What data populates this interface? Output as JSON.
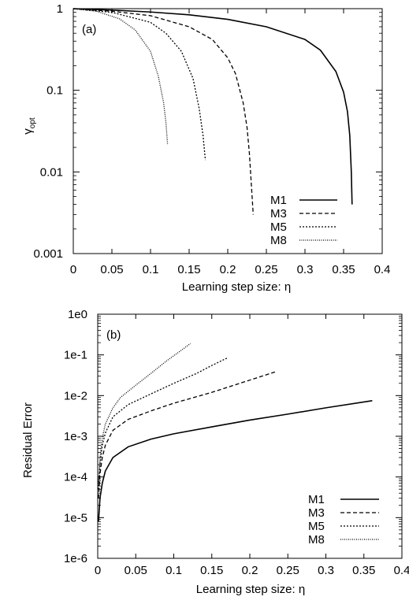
{
  "chart_data": [
    {
      "type": "line",
      "panel_label": "(a)",
      "xlabel": "Learning step size: η",
      "ylabel": "γ",
      "ylabel_sub": "opt",
      "xlim": [
        0,
        0.4
      ],
      "ylim": [
        0.001,
        1
      ],
      "yscale": "log",
      "x_ticks": [
        "0",
        "0.05",
        "0.1",
        "0.15",
        "0.2",
        "0.25",
        "0.3",
        "0.35",
        "0.4"
      ],
      "y_ticks": [
        "0.001",
        "0.01",
        "0.1",
        "1"
      ],
      "grid": false,
      "legend_position": "bottom-right",
      "series": [
        {
          "name": "M1",
          "style": "solid",
          "x": [
            0,
            0.05,
            0.1,
            0.15,
            0.2,
            0.25,
            0.3,
            0.32,
            0.34,
            0.35,
            0.355,
            0.358,
            0.36,
            0.361
          ],
          "y": [
            1,
            0.96,
            0.91,
            0.84,
            0.74,
            0.6,
            0.42,
            0.31,
            0.17,
            0.095,
            0.055,
            0.028,
            0.01,
            0.004
          ]
        },
        {
          "name": "M3",
          "style": "dashed",
          "x": [
            0,
            0.05,
            0.1,
            0.15,
            0.18,
            0.2,
            0.21,
            0.22,
            0.225,
            0.228,
            0.231,
            0.233
          ],
          "y": [
            1,
            0.93,
            0.82,
            0.6,
            0.42,
            0.25,
            0.16,
            0.07,
            0.035,
            0.017,
            0.006,
            0.003
          ]
        },
        {
          "name": "M5",
          "style": "dotted",
          "x": [
            0,
            0.05,
            0.1,
            0.12,
            0.14,
            0.155,
            0.163,
            0.168,
            0.171
          ],
          "y": [
            1,
            0.9,
            0.68,
            0.5,
            0.3,
            0.14,
            0.06,
            0.028,
            0.014
          ]
        },
        {
          "name": "M8",
          "style": "fine-dotted",
          "x": [
            0,
            0.03,
            0.06,
            0.08,
            0.1,
            0.11,
            0.117,
            0.12,
            0.122
          ],
          "y": [
            1,
            0.93,
            0.75,
            0.55,
            0.3,
            0.15,
            0.07,
            0.04,
            0.022
          ]
        }
      ]
    },
    {
      "type": "line",
      "panel_label": "(b)",
      "xlabel": "Learning step size: η",
      "ylabel": "Residual Error",
      "xlim": [
        0,
        0.4
      ],
      "ylim": [
        1e-06,
        1
      ],
      "yscale": "log",
      "x_ticks": [
        "0",
        "0.05",
        "0.1",
        "0.15",
        "0.2",
        "0.25",
        "0.3",
        "0.35",
        "0.4"
      ],
      "y_ticks": [
        "1e-6",
        "1e-5",
        "1e-4",
        "1e-3",
        "1e-2",
        "1e-1",
        "1e0"
      ],
      "grid": false,
      "legend_position": "bottom-right",
      "series": [
        {
          "name": "M1",
          "style": "solid",
          "x": [
            0.001,
            0.003,
            0.006,
            0.01,
            0.02,
            0.04,
            0.07,
            0.1,
            0.15,
            0.2,
            0.25,
            0.3,
            0.361
          ],
          "y": [
            8e-06,
            3e-05,
            7e-05,
            0.00014,
            0.0003,
            0.00055,
            0.00085,
            0.00115,
            0.0017,
            0.0025,
            0.0035,
            0.005,
            0.0075
          ]
        },
        {
          "name": "M3",
          "style": "dashed",
          "x": [
            0.001,
            0.003,
            0.006,
            0.01,
            0.02,
            0.04,
            0.07,
            0.1,
            0.15,
            0.2,
            0.233
          ],
          "y": [
            3e-05,
            0.00012,
            0.0003,
            0.0006,
            0.0014,
            0.0026,
            0.0042,
            0.0065,
            0.012,
            0.024,
            0.038
          ]
        },
        {
          "name": "M5",
          "style": "dotted",
          "x": [
            0.001,
            0.003,
            0.006,
            0.01,
            0.02,
            0.04,
            0.07,
            0.1,
            0.13,
            0.15,
            0.171
          ],
          "y": [
            5e-05,
            0.0002,
            0.0006,
            0.0012,
            0.003,
            0.006,
            0.011,
            0.02,
            0.035,
            0.055,
            0.085
          ]
        },
        {
          "name": "M8",
          "style": "fine-dotted",
          "x": [
            0.001,
            0.003,
            0.006,
            0.01,
            0.02,
            0.03,
            0.05,
            0.07,
            0.09,
            0.11,
            0.122
          ],
          "y": [
            6e-05,
            0.0003,
            0.0009,
            0.002,
            0.005,
            0.009,
            0.018,
            0.035,
            0.07,
            0.13,
            0.19
          ]
        }
      ]
    }
  ]
}
